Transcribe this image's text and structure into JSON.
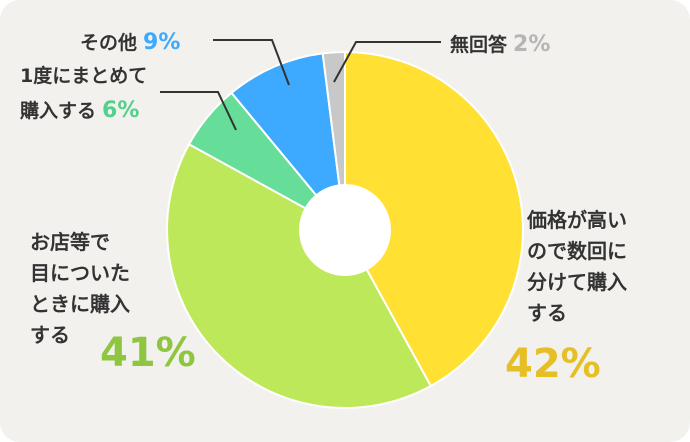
{
  "chart_data": {
    "type": "pie",
    "donut": true,
    "categories": [
      "価格が高いので数回に分けて購入する",
      "お店等で目についたときに購入する",
      "1度にまとめて購入する",
      "その他",
      "無回答"
    ],
    "label_lines": [
      [
        "価格が高い",
        "ので数回に",
        "分けて購入",
        "する"
      ],
      [
        "お店等で",
        "目についた",
        "ときに購入",
        "する"
      ],
      [
        "1度にまとめて",
        "購入する"
      ],
      [
        "その他"
      ],
      [
        "無回答"
      ]
    ],
    "values": [
      42,
      41,
      6,
      9,
      2
    ],
    "value_labels": [
      "42%",
      "41%",
      "6%",
      "9%",
      "2%"
    ],
    "colors": [
      "#ffe033",
      "#bde85a",
      "#66dd99",
      "#3da9ff",
      "#c8c8c8"
    ],
    "percent_colors": [
      "#e6bf27",
      "#8ec63f",
      "#55d08a",
      "#3da9ff",
      "#b5b5b5"
    ],
    "legend": "none"
  }
}
